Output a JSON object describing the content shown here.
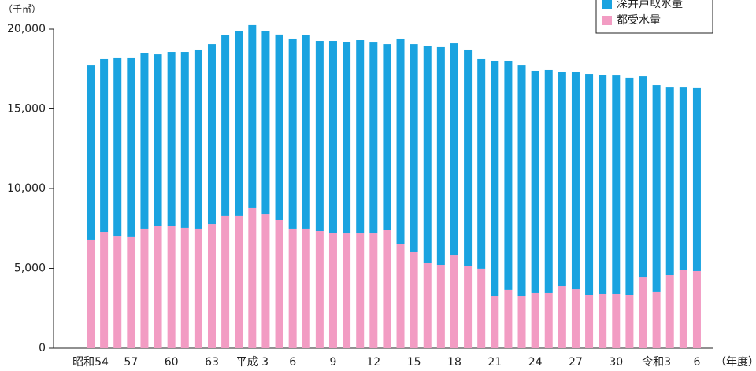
{
  "chart_data": {
    "type": "stacked_bar",
    "unit_label": "（千㎥）",
    "x_unit_label": "（年度）",
    "categories": [
      "昭和54",
      null,
      null,
      "57",
      null,
      null,
      "60",
      null,
      null,
      "63",
      null,
      null,
      "平成 3",
      null,
      null,
      "6",
      null,
      null,
      "9",
      null,
      null,
      "12",
      null,
      null,
      "15",
      null,
      null,
      "18",
      null,
      null,
      "21",
      null,
      null,
      "24",
      null,
      null,
      "27",
      null,
      null,
      "30",
      null,
      null,
      "令和3",
      null,
      null,
      "6"
    ],
    "series": [
      {
        "name": "深井戸取水量",
        "color": "#1aa3e0",
        "values": [
          10930,
          10840,
          11140,
          11180,
          11030,
          10780,
          10930,
          11030,
          11230,
          11280,
          11330,
          11620,
          11430,
          11480,
          11630,
          11920,
          12120,
          11920,
          12020,
          12020,
          12120,
          11970,
          11670,
          12860,
          13000,
          13550,
          13650,
          13300,
          13550,
          13150,
          14780,
          14380,
          14480,
          13940,
          13990,
          13450,
          13650,
          13840,
          13740,
          13690,
          13600,
          12610,
          12950,
          11770,
          11470,
          11480
        ]
      },
      {
        "name": "都受水量",
        "color": "#f29cc3",
        "values": [
          6800,
          7290,
          7040,
          7000,
          7490,
          7640,
          7640,
          7540,
          7490,
          7780,
          8280,
          8280,
          8820,
          8420,
          8030,
          7490,
          7490,
          7340,
          7240,
          7190,
          7190,
          7190,
          7390,
          6550,
          6060,
          5370,
          5220,
          5810,
          5170,
          4980,
          3250,
          3650,
          3250,
          3450,
          3450,
          3890,
          3690,
          3350,
          3400,
          3400,
          3350,
          4430,
          3550,
          4580,
          4880,
          4830
        ]
      }
    ],
    "ylim": [
      0,
      20000
    ],
    "yticks": [
      0,
      {
        "value": 5000,
        "label": "5,000"
      },
      {
        "value": 10000,
        "label": "10,000"
      },
      {
        "value": 15000,
        "label": "15,000"
      },
      {
        "value": 20000,
        "label": "20,000"
      }
    ],
    "legend": "top-right"
  }
}
